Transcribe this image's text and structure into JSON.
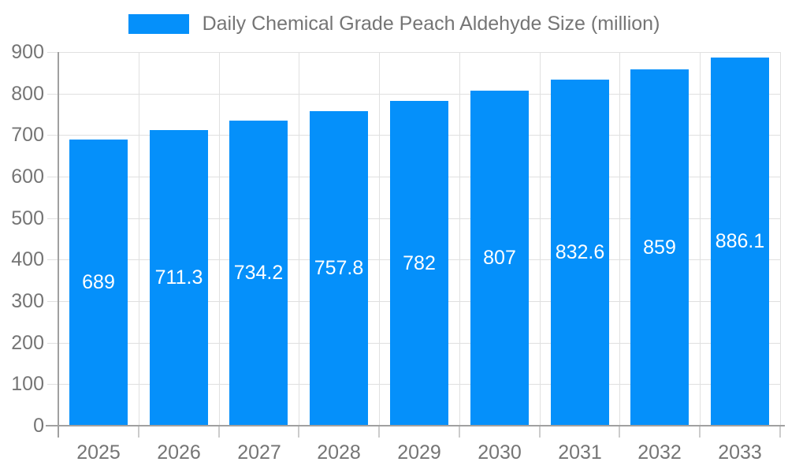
{
  "legend": {
    "label": "Daily Chemical Grade Peach Aldehyde Size (million)"
  },
  "colors": {
    "bar": "#0590fa",
    "grid": "#e0e0e0",
    "axis": "#a0a0a0",
    "below_axis_tick": "#cccccc",
    "tick_text": "#757575",
    "legend_text": "#757575",
    "value_label_text": "#ffffff",
    "background": "#ffffff"
  },
  "chart_data": {
    "type": "bar",
    "title": "Daily Chemical Grade Peach Aldehyde Size (million)",
    "categories": [
      "2025",
      "2026",
      "2027",
      "2028",
      "2029",
      "2030",
      "2031",
      "2032",
      "2033"
    ],
    "values": [
      689,
      711.3,
      734.2,
      757.8,
      782,
      807,
      832.6,
      859,
      886.1
    ],
    "bar_labels": [
      "689",
      "711.3",
      "734.2",
      "757.8",
      "782",
      "807",
      "832.6",
      "859",
      "886.1"
    ],
    "xlabel": "",
    "ylabel": "",
    "ylim": [
      0,
      900
    ],
    "yticks": [
      0,
      100,
      200,
      300,
      400,
      500,
      600,
      700,
      800,
      900
    ],
    "grid": true,
    "legend_position": "top-center",
    "value_label_position": "middle-of-bar"
  }
}
